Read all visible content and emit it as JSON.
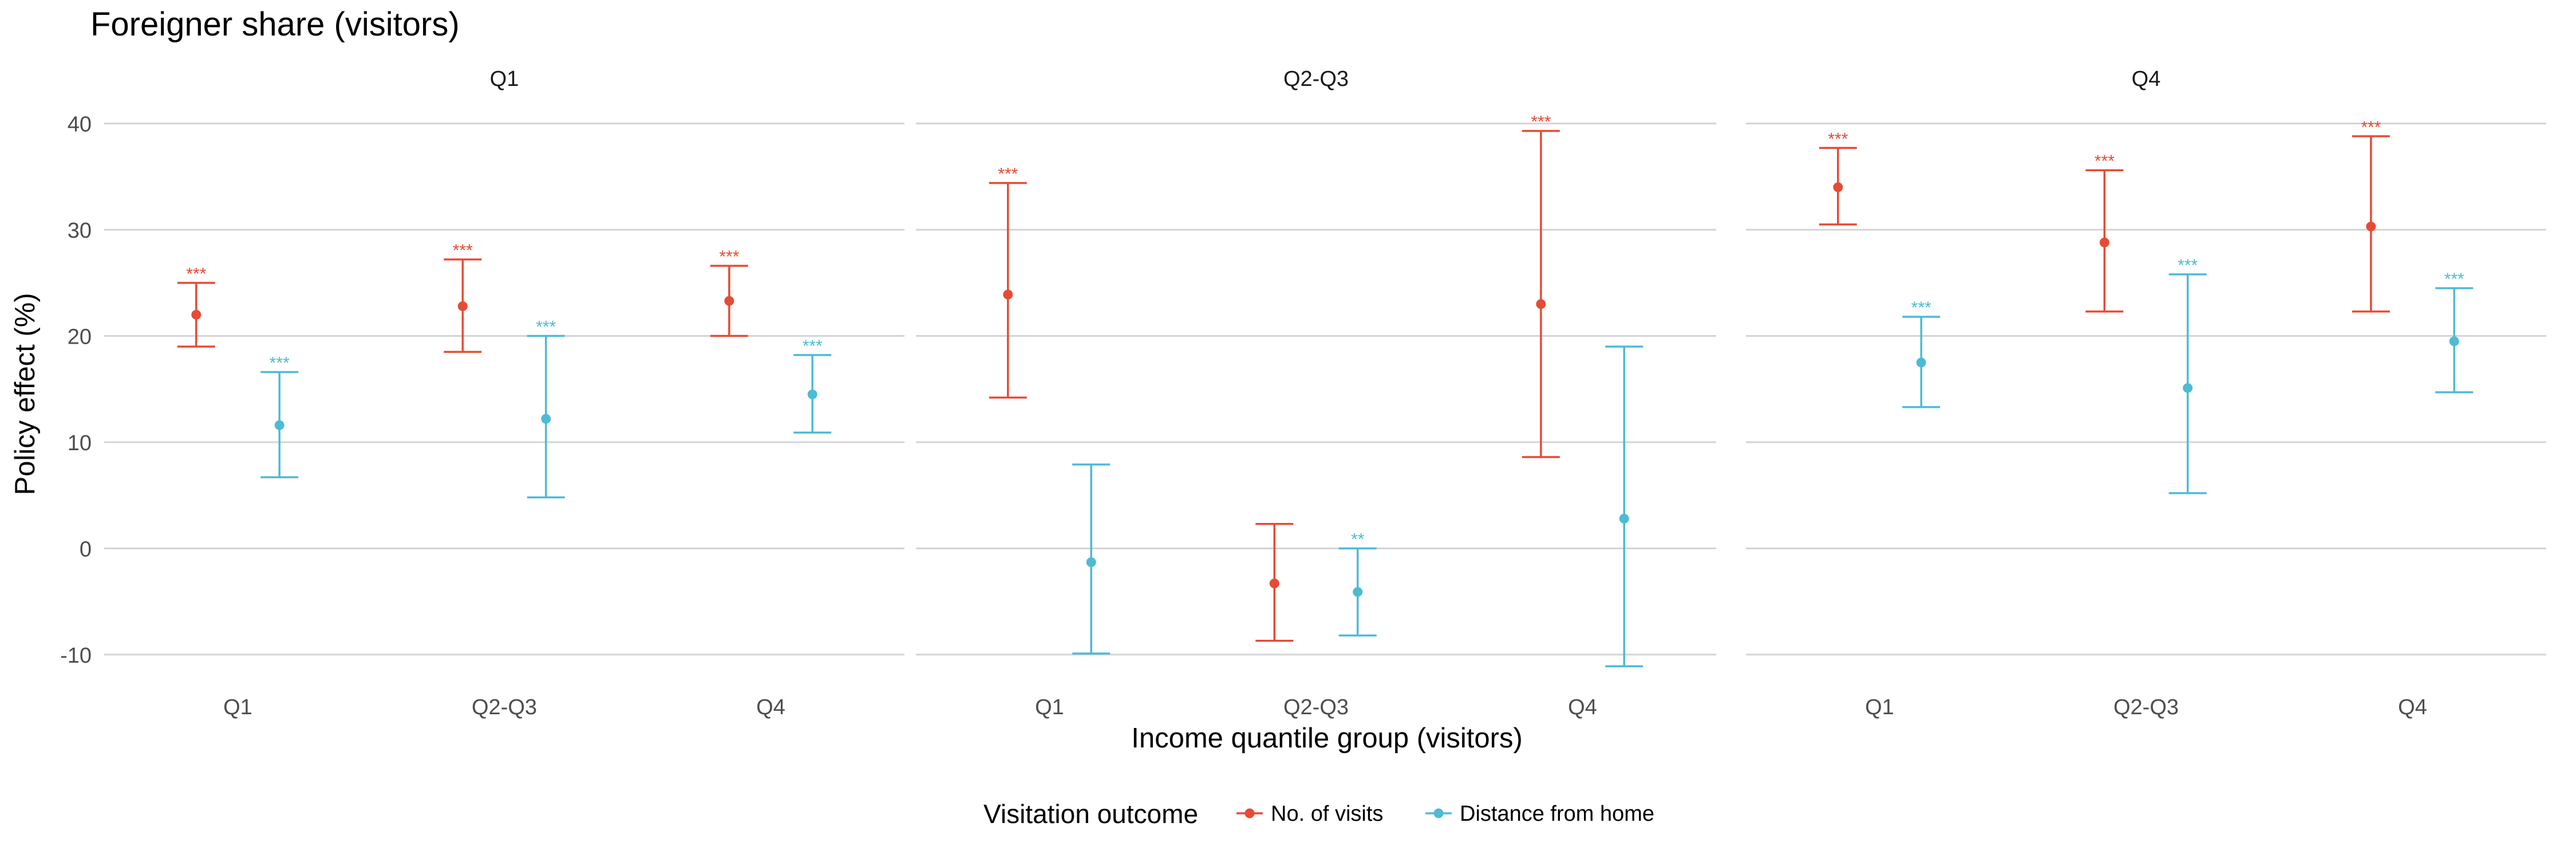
{
  "chart_data": {
    "type": "errorbar",
    "title": "Foreigner share (visitors)",
    "xlabel": "Income quantile group (visitors)",
    "ylabel": "Policy effect (%)",
    "ylim": [
      -12,
      43
    ],
    "yticks": [
      -10,
      0,
      10,
      20,
      30,
      40
    ],
    "ytick_labels": [
      "-10",
      "0",
      "10",
      "20",
      "30",
      "40"
    ],
    "grid": "horizontal",
    "categories": [
      "Q1",
      "Q2-Q3",
      "Q4"
    ],
    "legend": {
      "title": "Visitation outcome",
      "position": "bottom",
      "entries": [
        "No. of visits",
        "Distance from home"
      ]
    },
    "series_colors": {
      "No. of visits": "#E64B35",
      "Distance from home": "#4DBBD5"
    },
    "panels": [
      {
        "title": "Q1",
        "series": [
          {
            "name": "No. of visits",
            "points": [
              {
                "x": "Q1",
                "y": 22.0,
                "lo": 19.0,
                "hi": 25.0,
                "sig": "***"
              },
              {
                "x": "Q2-Q3",
                "y": 22.8,
                "lo": 18.5,
                "hi": 27.2,
                "sig": "***"
              },
              {
                "x": "Q4",
                "y": 23.3,
                "lo": 20.0,
                "hi": 26.6,
                "sig": "***"
              }
            ]
          },
          {
            "name": "Distance from home",
            "points": [
              {
                "x": "Q1",
                "y": 11.6,
                "lo": 6.7,
                "hi": 16.6,
                "sig": "***"
              },
              {
                "x": "Q2-Q3",
                "y": 12.2,
                "lo": 4.8,
                "hi": 20.0,
                "sig": "***"
              },
              {
                "x": "Q4",
                "y": 14.5,
                "lo": 10.9,
                "hi": 18.2,
                "sig": "***"
              }
            ]
          }
        ]
      },
      {
        "title": "Q2-Q3",
        "series": [
          {
            "name": "No. of visits",
            "points": [
              {
                "x": "Q1",
                "y": 23.9,
                "lo": 14.2,
                "hi": 34.4,
                "sig": "***"
              },
              {
                "x": "Q2-Q3",
                "y": -3.3,
                "lo": -8.7,
                "hi": 2.3,
                "sig": ""
              },
              {
                "x": "Q4",
                "y": 23.0,
                "lo": 8.6,
                "hi": 39.3,
                "sig": "***"
              }
            ]
          },
          {
            "name": "Distance from home",
            "points": [
              {
                "x": "Q1",
                "y": -1.3,
                "lo": -9.9,
                "hi": 7.9,
                "sig": ""
              },
              {
                "x": "Q2-Q3",
                "y": -4.1,
                "lo": -8.2,
                "hi": 0.0,
                "sig": "**"
              },
              {
                "x": "Q4",
                "y": 2.8,
                "lo": -11.1,
                "hi": 19.0,
                "sig": ""
              }
            ]
          }
        ]
      },
      {
        "title": "Q4",
        "series": [
          {
            "name": "No. of visits",
            "points": [
              {
                "x": "Q1",
                "y": 34.0,
                "lo": 30.5,
                "hi": 37.7,
                "sig": "***"
              },
              {
                "x": "Q2-Q3",
                "y": 28.8,
                "lo": 22.3,
                "hi": 35.6,
                "sig": "***"
              },
              {
                "x": "Q4",
                "y": 30.3,
                "lo": 22.3,
                "hi": 38.8,
                "sig": "***"
              }
            ]
          },
          {
            "name": "Distance from home",
            "points": [
              {
                "x": "Q1",
                "y": 17.5,
                "lo": 13.3,
                "hi": 21.8,
                "sig": "***"
              },
              {
                "x": "Q2-Q3",
                "y": 15.1,
                "lo": 5.2,
                "hi": 25.8,
                "sig": "***"
              },
              {
                "x": "Q4",
                "y": 19.5,
                "lo": 14.7,
                "hi": 24.5,
                "sig": "***"
              }
            ]
          }
        ]
      }
    ]
  }
}
